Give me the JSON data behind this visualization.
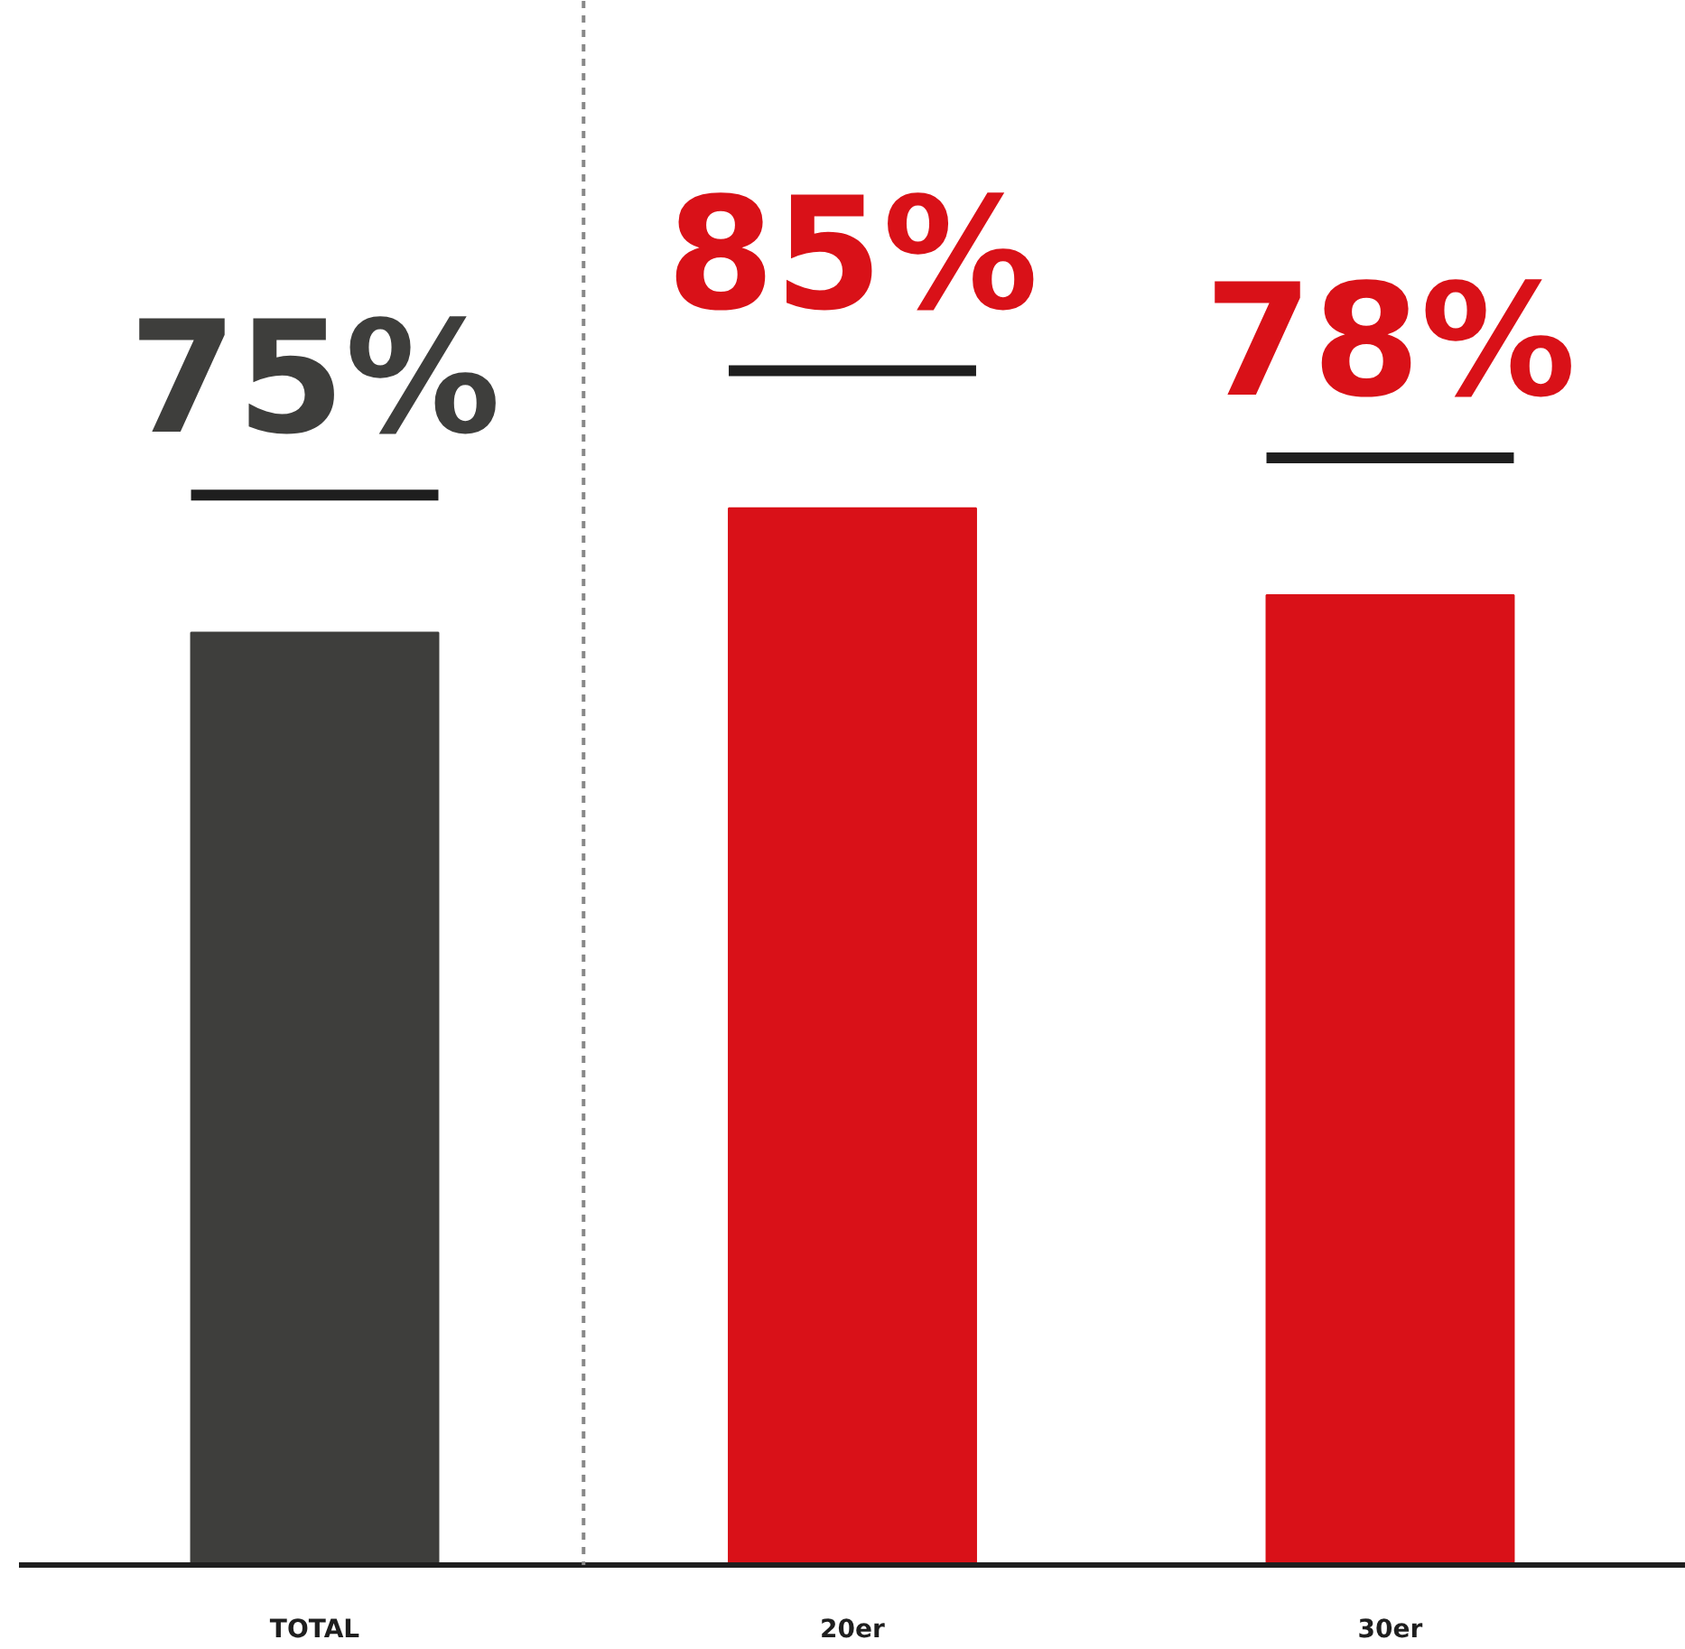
{
  "chart_data": {
    "type": "bar",
    "categories": [
      "TOTAL",
      "20er",
      "30er"
    ],
    "values": [
      75,
      85,
      78
    ],
    "colors": [
      "#3e3e3c",
      "#d91118",
      "#d91118"
    ],
    "value_labels": [
      "75%",
      "85%",
      "78%"
    ],
    "tick_labels": "x",
    "grid": false
  }
}
